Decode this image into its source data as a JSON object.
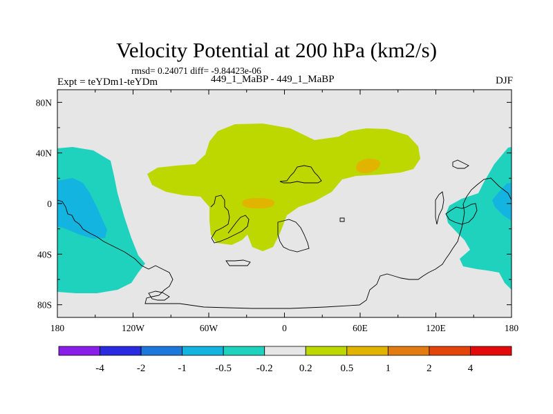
{
  "title": "Velocity Potential at 200 hPa (km2/s)",
  "stats": "rmsd= 0.24071 diff= -9.84423e-06",
  "experiment": "Expt = teYDm1-teYDm",
  "center_label": "449_1_MaBP - 449_1_MaBP",
  "season": "DJF",
  "axes": {
    "lat_ticks": [
      "80N",
      "40N",
      "0",
      "40S",
      "80S"
    ],
    "lon_ticks": [
      "180",
      "120W",
      "60W",
      "0",
      "60E",
      "120E",
      "180"
    ],
    "lat_values": [
      80,
      40,
      0,
      -40,
      -80
    ],
    "lon_values": [
      -180,
      -120,
      -60,
      0,
      60,
      120,
      180
    ],
    "lat_range": [
      -90,
      90
    ],
    "lon_range": [
      -180,
      180
    ]
  },
  "colorbar": {
    "labels": [
      "-4",
      "-2",
      "-1",
      "-0.5",
      "-0.2",
      "0.2",
      "0.5",
      "1",
      "2",
      "4"
    ],
    "colors": [
      "#8a1ee8",
      "#2a2ae0",
      "#1e78dc",
      "#14b4e0",
      "#1ed2be",
      "#e6e6e6",
      "#bcd800",
      "#e0b400",
      "#e27c10",
      "#e2440a",
      "#e20a0a"
    ]
  },
  "colors": {
    "background": "#e6e6e6",
    "neg_02_05": "#1ed2be",
    "neg_05_1": "#14b4e0",
    "pos_02_05": "#bcd800",
    "pos_05_1": "#e0b400"
  }
}
